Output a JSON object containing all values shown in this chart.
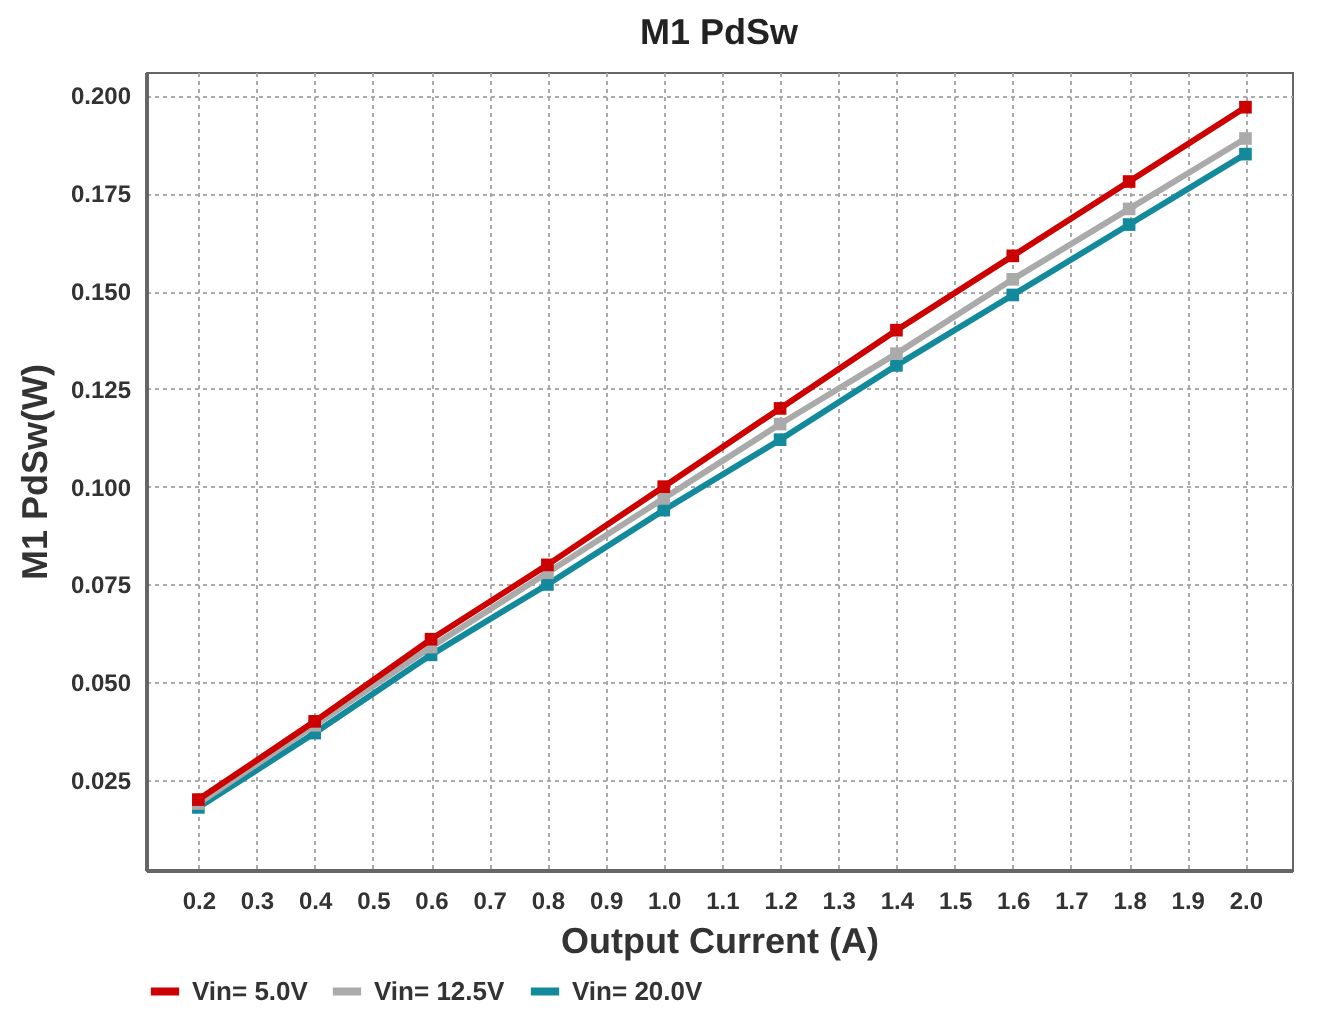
{
  "chart_data": {
    "type": "line",
    "title": "M1  PdSw",
    "xlabel": "Output Current (A)",
    "ylabel": "M1  PdSw(W)",
    "x": [
      0.2,
      0.4,
      0.6,
      0.8,
      1.0,
      1.2,
      1.4,
      1.6,
      1.8,
      2.0
    ],
    "series": [
      {
        "name": "Vin= 5.0V",
        "color": "#cc0000",
        "values": [
          0.02,
          0.04,
          0.061,
          0.08,
          0.1,
          0.12,
          0.14,
          0.159,
          0.178,
          0.197
        ]
      },
      {
        "name": "Vin= 12.5V",
        "color": "#aaaaaa",
        "values": [
          0.019,
          0.039,
          0.059,
          0.078,
          0.097,
          0.116,
          0.134,
          0.153,
          0.171,
          0.189
        ]
      },
      {
        "name": "Vin= 20.0V",
        "color": "#138a9c",
        "values": [
          0.018,
          0.037,
          0.057,
          0.075,
          0.094,
          0.112,
          0.131,
          0.149,
          0.167,
          0.185
        ]
      }
    ],
    "xlim": [
      0.11,
      2.08
    ],
    "xticks": [
      {
        "value": 0.2,
        "label": "0.2"
      },
      {
        "value": 0.3,
        "label": "0.3"
      },
      {
        "value": 0.4,
        "label": "0.4"
      },
      {
        "value": 0.5,
        "label": "0.5"
      },
      {
        "value": 0.6,
        "label": "0.6"
      },
      {
        "value": 0.7,
        "label": "0.7"
      },
      {
        "value": 0.8,
        "label": "0.8"
      },
      {
        "value": 0.9,
        "label": "0.9"
      },
      {
        "value": 1.0,
        "label": "1.0"
      },
      {
        "value": 1.1,
        "label": "1.1"
      },
      {
        "value": 1.2,
        "label": "1.2"
      },
      {
        "value": 1.3,
        "label": "1.3"
      },
      {
        "value": 1.4,
        "label": "1.4"
      },
      {
        "value": 1.5,
        "label": "1.5"
      },
      {
        "value": 1.6,
        "label": "1.6"
      },
      {
        "value": 1.7,
        "label": "1.7"
      },
      {
        "value": 1.8,
        "label": "1.8"
      },
      {
        "value": 1.9,
        "label": "1.9"
      },
      {
        "value": 2.0,
        "label": "2.0"
      }
    ],
    "ylim": [
      0.002,
      0.206
    ],
    "yticks": [
      {
        "value": 0.025,
        "label": "0.025"
      },
      {
        "value": 0.05,
        "label": "0.050"
      },
      {
        "value": 0.075,
        "label": "0.075"
      },
      {
        "value": 0.1,
        "label": "0.100"
      },
      {
        "value": 0.125,
        "label": "0.125"
      },
      {
        "value": 0.15,
        "label": "0.150"
      },
      {
        "value": 0.175,
        "label": "0.175"
      },
      {
        "value": 0.2,
        "label": "0.200"
      }
    ],
    "grid": true,
    "legend": "bottom",
    "marker": "square",
    "line_style": "solid"
  }
}
